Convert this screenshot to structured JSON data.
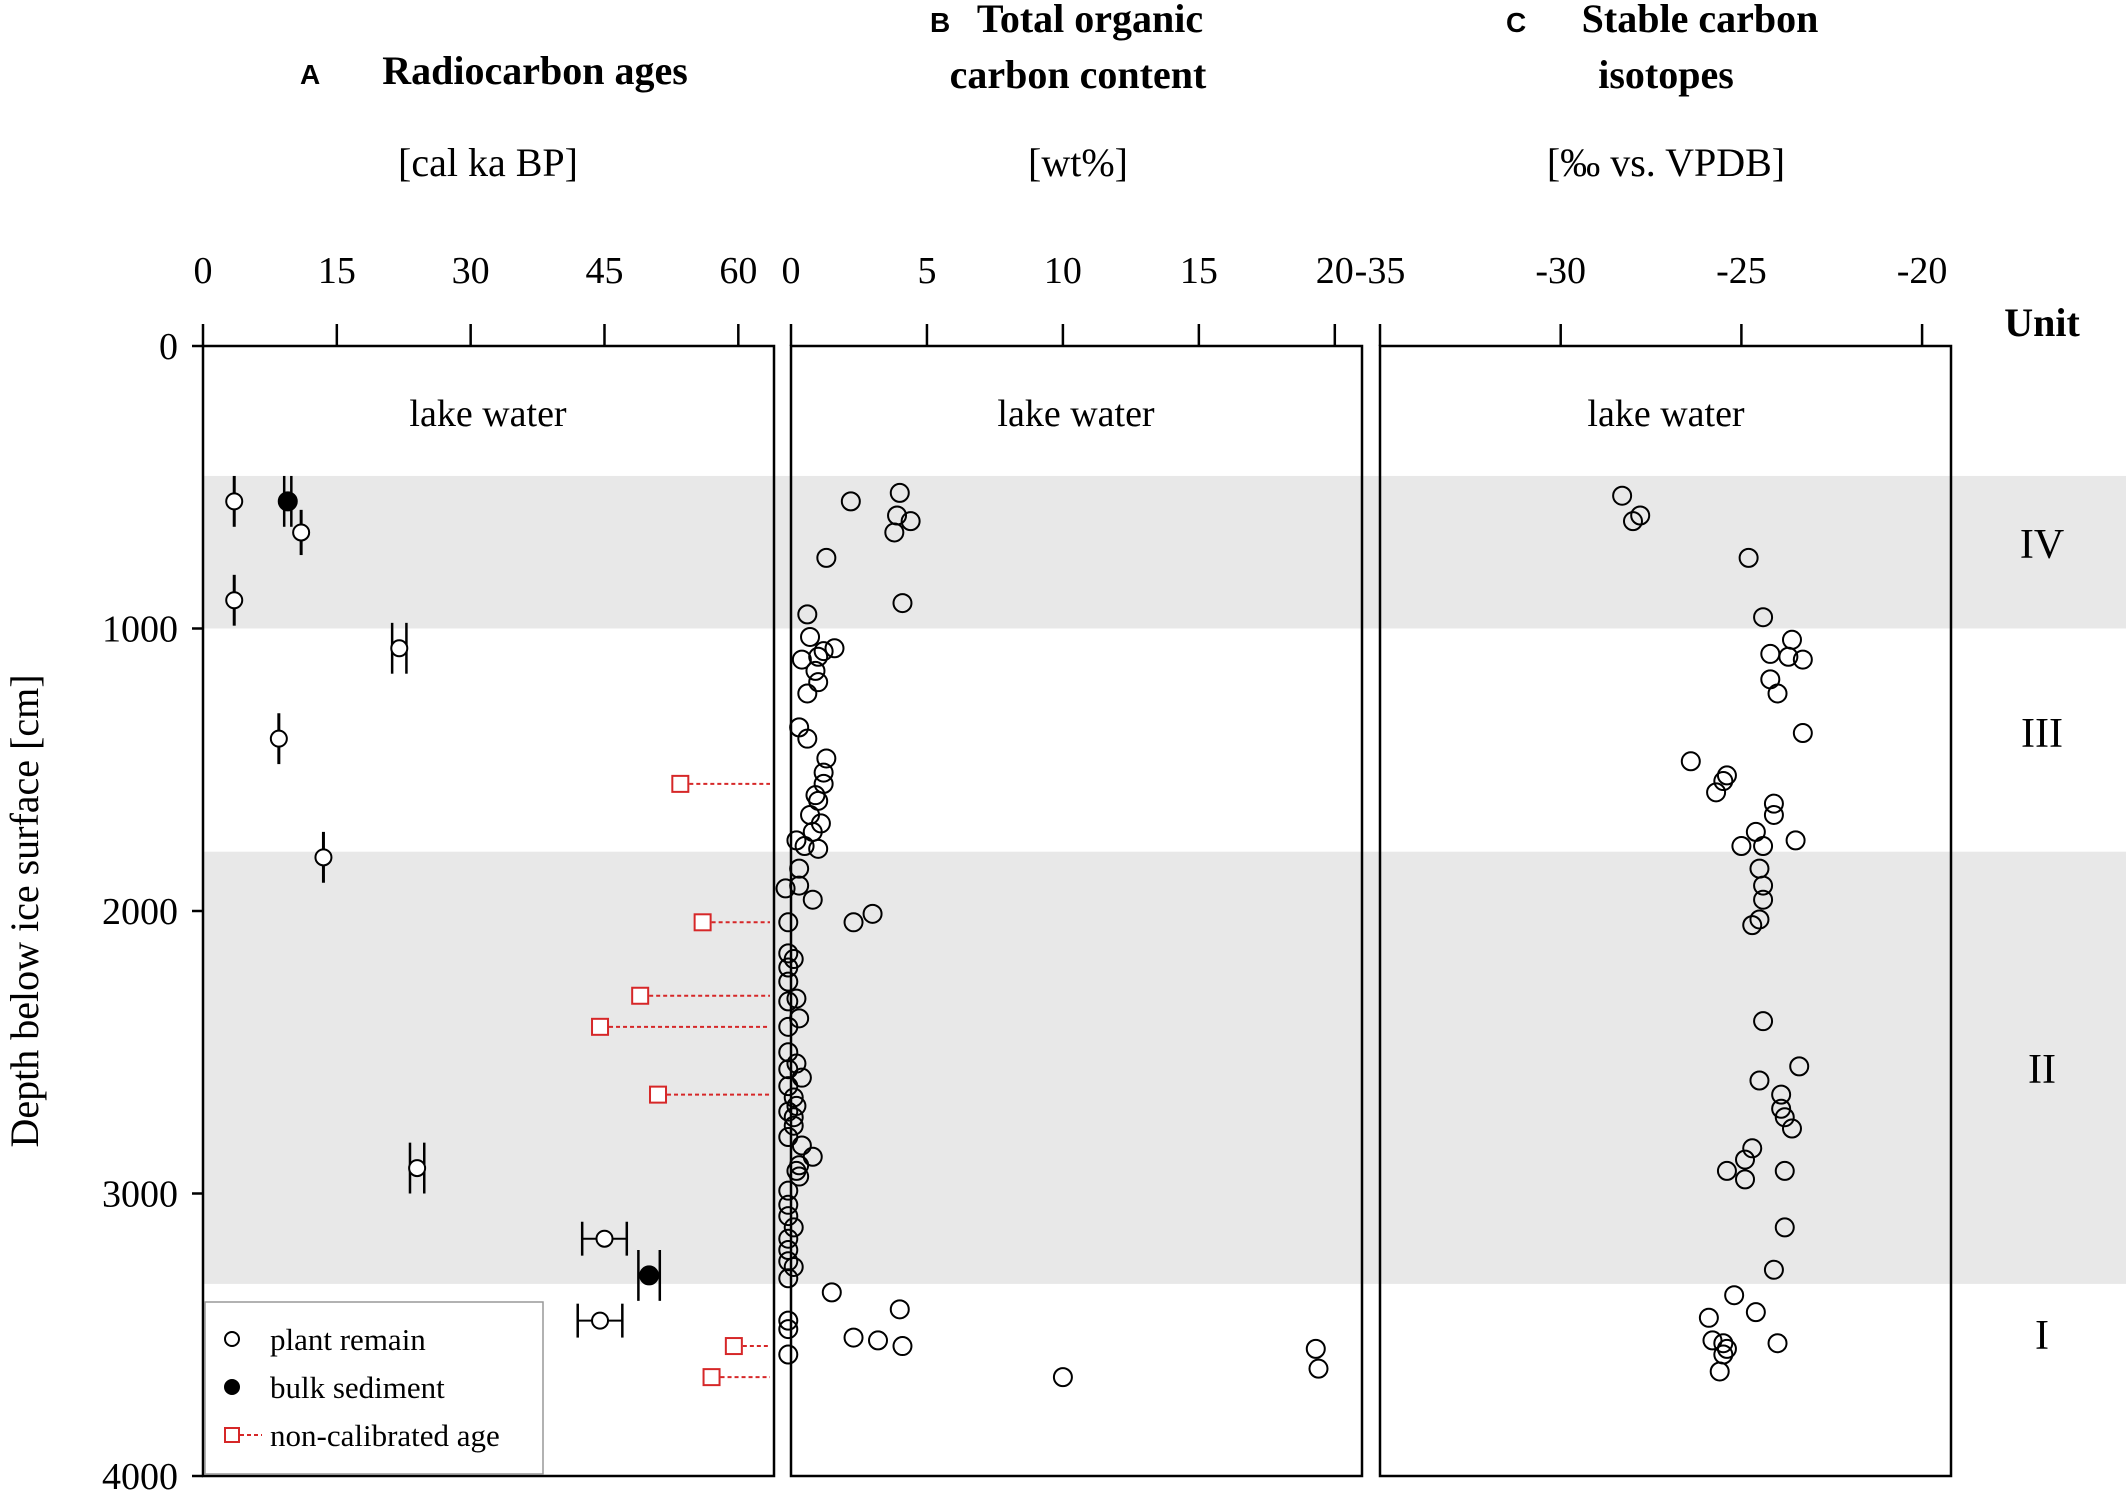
{
  "chart_data": {
    "type": "scatter",
    "y_axis": {
      "label": "Depth below ice surface [cm]",
      "range": [
        0,
        4000
      ],
      "ticks": [
        0,
        1000,
        2000,
        3000,
        4000
      ]
    },
    "unit_column": {
      "header": "Unit"
    },
    "units": [
      {
        "name": "IV",
        "top": 460,
        "bottom": 1000,
        "label_depth": 700,
        "shaded": true
      },
      {
        "name": "III",
        "top": 1000,
        "bottom": 1790,
        "label_depth": 1370,
        "shaded": false
      },
      {
        "name": "II",
        "top": 1790,
        "bottom": 3320,
        "label_depth": 2560,
        "shaded": true
      },
      {
        "name": "I",
        "top": 3320,
        "bottom": 4000,
        "label_depth": 3500,
        "shaded": false
      }
    ],
    "panels": [
      {
        "id": "A",
        "title_lines": [
          "Radiocarbon ages"
        ],
        "unit": "[cal ka BP]",
        "xlim": [
          0,
          64
        ],
        "ticks": [
          0,
          15,
          30,
          45,
          60
        ],
        "water_label": "lake water",
        "plant_remain": [
          {
            "x": 3.5,
            "y": 550,
            "xerr": 0,
            "yerr": 90
          },
          {
            "x": 11,
            "y": 660,
            "xerr": 0,
            "yerr": 80
          },
          {
            "x": 3.5,
            "y": 900,
            "xerr": 0,
            "yerr": 90
          },
          {
            "x": 22,
            "y": 1070,
            "xerr": 0.8,
            "yerr": 90
          },
          {
            "x": 8.5,
            "y": 1390,
            "xerr": 0,
            "yerr": 90
          },
          {
            "x": 13.5,
            "y": 1810,
            "xerr": 0,
            "yerr": 90
          },
          {
            "x": 24,
            "y": 2910,
            "xerr": 0.8,
            "yerr": 90
          },
          {
            "x": 45,
            "y": 3160,
            "xerr": 2.5,
            "yerr": 60
          },
          {
            "x": 44.5,
            "y": 3450,
            "xerr": 2.5,
            "yerr": 60
          }
        ],
        "bulk_sediment": [
          {
            "x": 9.5,
            "y": 550,
            "xerr": 0.4,
            "yerr": 90
          },
          {
            "x": 50,
            "y": 3290,
            "xerr": 1.2,
            "yerr": 90
          }
        ],
        "non_calibrated": [
          {
            "x": 53.5,
            "y": 1550
          },
          {
            "x": 56,
            "y": 2040
          },
          {
            "x": 49,
            "y": 2300
          },
          {
            "x": 44.5,
            "y": 2410
          },
          {
            "x": 51,
            "y": 2650
          },
          {
            "x": 59.5,
            "y": 3540
          },
          {
            "x": 57,
            "y": 3650
          }
        ],
        "legend": [
          {
            "label": "plant remain",
            "symbol": "open-circle"
          },
          {
            "label": "bulk sediment",
            "symbol": "filled-circle"
          },
          {
            "label": "non-calibrated age",
            "symbol": "red-square"
          }
        ]
      },
      {
        "id": "B",
        "title_lines": [
          "Total organic",
          "carbon content"
        ],
        "unit": "[wt%]",
        "xlim": [
          0,
          21
        ],
        "ticks": [
          0,
          5,
          10,
          15,
          20
        ],
        "water_label": "lake water",
        "points": [
          {
            "x": 4.0,
            "y": 520
          },
          {
            "x": 2.2,
            "y": 550
          },
          {
            "x": 3.9,
            "y": 600
          },
          {
            "x": 4.4,
            "y": 620
          },
          {
            "x": 3.8,
            "y": 660
          },
          {
            "x": 1.3,
            "y": 750
          },
          {
            "x": 4.1,
            "y": 910
          },
          {
            "x": 0.6,
            "y": 950
          },
          {
            "x": 0.7,
            "y": 1030
          },
          {
            "x": 1.6,
            "y": 1070
          },
          {
            "x": 1.2,
            "y": 1080
          },
          {
            "x": 1.0,
            "y": 1100
          },
          {
            "x": 0.4,
            "y": 1110
          },
          {
            "x": 0.9,
            "y": 1150
          },
          {
            "x": 1.0,
            "y": 1190
          },
          {
            "x": 0.6,
            "y": 1230
          },
          {
            "x": 0.3,
            "y": 1350
          },
          {
            "x": 0.6,
            "y": 1390
          },
          {
            "x": 1.3,
            "y": 1460
          },
          {
            "x": 1.2,
            "y": 1510
          },
          {
            "x": 1.2,
            "y": 1550
          },
          {
            "x": 0.9,
            "y": 1590
          },
          {
            "x": 1.0,
            "y": 1610
          },
          {
            "x": 0.7,
            "y": 1660
          },
          {
            "x": 1.1,
            "y": 1690
          },
          {
            "x": 0.8,
            "y": 1720
          },
          {
            "x": 0.2,
            "y": 1750
          },
          {
            "x": 0.5,
            "y": 1770
          },
          {
            "x": 1.0,
            "y": 1780
          },
          {
            "x": 0.3,
            "y": 1850
          },
          {
            "x": 0.3,
            "y": 1910
          },
          {
            "x": -0.2,
            "y": 1920
          },
          {
            "x": 0.8,
            "y": 1960
          },
          {
            "x": 3.0,
            "y": 2010
          },
          {
            "x": 2.3,
            "y": 2040
          },
          {
            "x": -0.1,
            "y": 2040
          },
          {
            "x": -0.1,
            "y": 2150
          },
          {
            "x": 0.1,
            "y": 2170
          },
          {
            "x": -0.1,
            "y": 2200
          },
          {
            "x": -0.1,
            "y": 2250
          },
          {
            "x": 0.2,
            "y": 2310
          },
          {
            "x": -0.1,
            "y": 2320
          },
          {
            "x": 0.3,
            "y": 2380
          },
          {
            "x": -0.1,
            "y": 2410
          },
          {
            "x": -0.1,
            "y": 2500
          },
          {
            "x": 0.2,
            "y": 2540
          },
          {
            "x": -0.1,
            "y": 2560
          },
          {
            "x": 0.4,
            "y": 2590
          },
          {
            "x": -0.1,
            "y": 2620
          },
          {
            "x": 0.1,
            "y": 2660
          },
          {
            "x": 0.2,
            "y": 2690
          },
          {
            "x": -0.1,
            "y": 2710
          },
          {
            "x": 0.1,
            "y": 2730
          },
          {
            "x": 0.1,
            "y": 2760
          },
          {
            "x": -0.1,
            "y": 2800
          },
          {
            "x": 0.4,
            "y": 2830
          },
          {
            "x": 0.8,
            "y": 2870
          },
          {
            "x": 0.3,
            "y": 2900
          },
          {
            "x": 0.2,
            "y": 2920
          },
          {
            "x": 0.3,
            "y": 2940
          },
          {
            "x": -0.1,
            "y": 2990
          },
          {
            "x": -0.1,
            "y": 3040
          },
          {
            "x": -0.1,
            "y": 3080
          },
          {
            "x": 0.1,
            "y": 3120
          },
          {
            "x": -0.1,
            "y": 3160
          },
          {
            "x": -0.1,
            "y": 3200
          },
          {
            "x": -0.1,
            "y": 3240
          },
          {
            "x": 0.1,
            "y": 3260
          },
          {
            "x": -0.1,
            "y": 3300
          },
          {
            "x": 1.5,
            "y": 3350
          },
          {
            "x": 4.0,
            "y": 3410
          },
          {
            "x": -0.1,
            "y": 3450
          },
          {
            "x": -0.1,
            "y": 3480
          },
          {
            "x": 2.3,
            "y": 3510
          },
          {
            "x": 3.2,
            "y": 3520
          },
          {
            "x": 4.1,
            "y": 3540
          },
          {
            "x": -0.1,
            "y": 3570
          },
          {
            "x": 19.3,
            "y": 3550
          },
          {
            "x": 19.4,
            "y": 3620
          },
          {
            "x": 10.0,
            "y": 3650
          }
        ]
      },
      {
        "id": "C",
        "title_lines": [
          "Stable carbon",
          "isotopes"
        ],
        "unit": "[‰ vs. VPDB]",
        "xlim": [
          -35,
          -19.2
        ],
        "ticks": [
          -35,
          -30,
          -25,
          -20
        ],
        "water_label": "lake water",
        "points": [
          {
            "x": -28.3,
            "y": 530
          },
          {
            "x": -27.8,
            "y": 600
          },
          {
            "x": -28.0,
            "y": 620
          },
          {
            "x": -24.8,
            "y": 750
          },
          {
            "x": -24.4,
            "y": 960
          },
          {
            "x": -23.6,
            "y": 1040
          },
          {
            "x": -24.2,
            "y": 1090
          },
          {
            "x": -23.7,
            "y": 1100
          },
          {
            "x": -23.3,
            "y": 1110
          },
          {
            "x": -24.2,
            "y": 1180
          },
          {
            "x": -24.0,
            "y": 1230
          },
          {
            "x": -23.3,
            "y": 1370
          },
          {
            "x": -26.4,
            "y": 1470
          },
          {
            "x": -25.4,
            "y": 1520
          },
          {
            "x": -25.5,
            "y": 1540
          },
          {
            "x": -25.7,
            "y": 1580
          },
          {
            "x": -24.1,
            "y": 1620
          },
          {
            "x": -24.1,
            "y": 1660
          },
          {
            "x": -24.6,
            "y": 1720
          },
          {
            "x": -23.5,
            "y": 1750
          },
          {
            "x": -25.0,
            "y": 1770
          },
          {
            "x": -24.4,
            "y": 1770
          },
          {
            "x": -24.5,
            "y": 1850
          },
          {
            "x": -24.4,
            "y": 1910
          },
          {
            "x": -24.4,
            "y": 1960
          },
          {
            "x": -24.5,
            "y": 2030
          },
          {
            "x": -24.7,
            "y": 2050
          },
          {
            "x": -24.4,
            "y": 2390
          },
          {
            "x": -23.4,
            "y": 2550
          },
          {
            "x": -24.5,
            "y": 2600
          },
          {
            "x": -23.9,
            "y": 2650
          },
          {
            "x": -23.9,
            "y": 2700
          },
          {
            "x": -23.8,
            "y": 2730
          },
          {
            "x": -23.6,
            "y": 2770
          },
          {
            "x": -24.7,
            "y": 2840
          },
          {
            "x": -24.9,
            "y": 2880
          },
          {
            "x": -25.4,
            "y": 2920
          },
          {
            "x": -23.8,
            "y": 2920
          },
          {
            "x": -24.9,
            "y": 2950
          },
          {
            "x": -23.8,
            "y": 3120
          },
          {
            "x": -24.1,
            "y": 3270
          },
          {
            "x": -25.2,
            "y": 3360
          },
          {
            "x": -25.9,
            "y": 3440
          },
          {
            "x": -24.6,
            "y": 3420
          },
          {
            "x": -25.5,
            "y": 3530
          },
          {
            "x": -24.0,
            "y": 3530
          },
          {
            "x": -25.8,
            "y": 3520
          },
          {
            "x": -25.4,
            "y": 3550
          },
          {
            "x": -25.5,
            "y": 3570
          },
          {
            "x": -25.6,
            "y": 3630
          }
        ]
      }
    ]
  }
}
